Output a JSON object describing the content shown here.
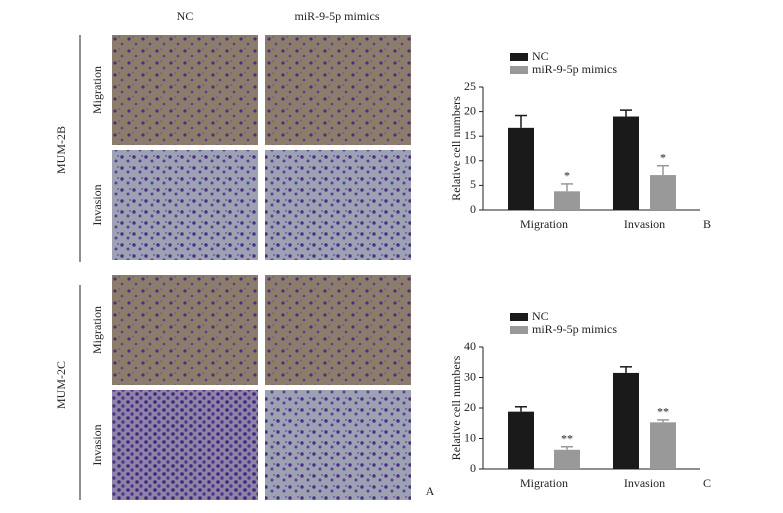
{
  "figure": {
    "column_headers": [
      "NC",
      "miR-9-5p mimics"
    ],
    "cell_lines": [
      "MUM-2B",
      "MUM-2C"
    ],
    "row_labels": [
      [
        "Migration",
        "Invasion"
      ],
      [
        "Migration",
        "Invasion"
      ]
    ],
    "panel_label": "A"
  },
  "chart_data": [
    {
      "type": "bar",
      "panel_label": "B",
      "y_label": "Relative cell numbers",
      "categories": [
        "Migration",
        "Invasion"
      ],
      "series": [
        {
          "name": "NC",
          "color": "#1a1a1a",
          "values": [
            16.7,
            19
          ],
          "errors": [
            2.5,
            1.3
          ]
        },
        {
          "name": "miR-9-5p mimics",
          "color": "#999999",
          "values": [
            3.8,
            7.1
          ],
          "errors": [
            1.5,
            1.9
          ],
          "annotations": [
            "*",
            "*"
          ]
        }
      ],
      "ylim": [
        0,
        25
      ],
      "yticks": [
        0,
        5,
        10,
        15,
        20,
        25
      ]
    },
    {
      "type": "bar",
      "panel_label": "C",
      "y_label": "Relative cell numbers",
      "categories": [
        "Migration",
        "Invasion"
      ],
      "series": [
        {
          "name": "NC",
          "color": "#1a1a1a",
          "values": [
            18.8,
            31.5
          ],
          "errors": [
            1.6,
            2
          ]
        },
        {
          "name": "miR-9-5p mimics",
          "color": "#999999",
          "values": [
            6.3,
            15.3
          ],
          "errors": [
            1,
            0.8
          ],
          "annotations": [
            "**",
            "**"
          ]
        }
      ],
      "ylim": [
        0,
        40
      ],
      "yticks": [
        0,
        10,
        20,
        30,
        40
      ]
    }
  ]
}
